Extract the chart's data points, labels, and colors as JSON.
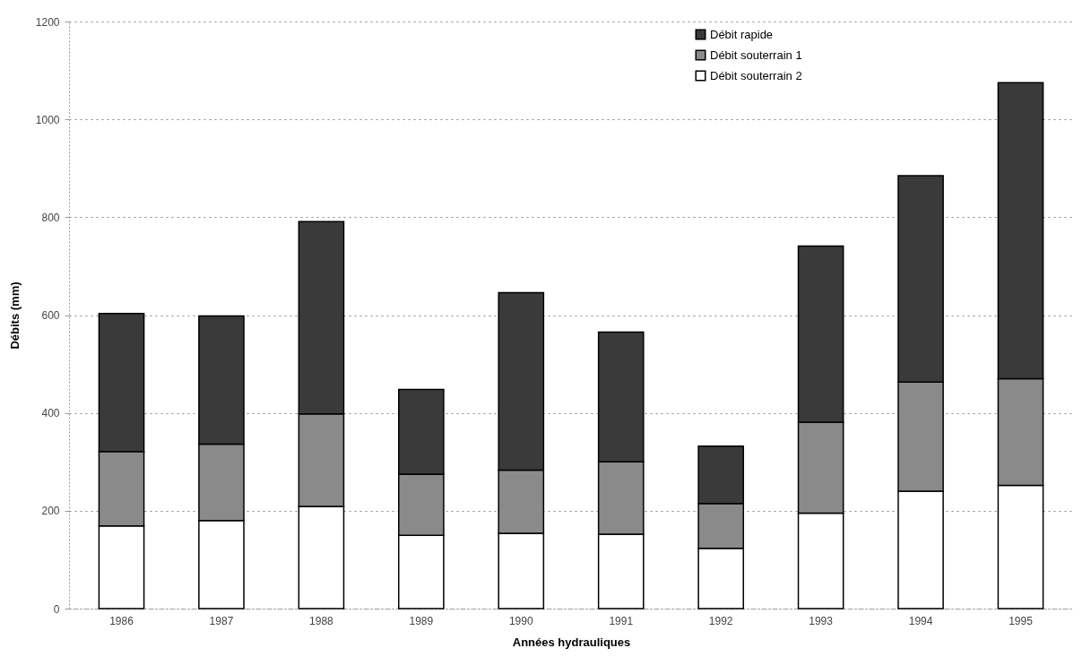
{
  "chart_data": {
    "type": "bar",
    "stacked": true,
    "xlabel": "Années hydrauliques",
    "ylabel": "Débits (mm)",
    "categories": [
      "1986",
      "1987",
      "1988",
      "1989",
      "1990",
      "1991",
      "1992",
      "1993",
      "1994",
      "1995"
    ],
    "series": [
      {
        "name": "Débit souterrain 2",
        "color": "#ffffff",
        "values": [
          169,
          180,
          209,
          150,
          154,
          152,
          123,
          195,
          240,
          252
        ]
      },
      {
        "name": "Débit souterrain 1",
        "color": "#8a8a8a",
        "values": [
          152,
          156,
          189,
          125,
          129,
          148,
          92,
          186,
          223,
          218
        ]
      },
      {
        "name": "Débit rapide",
        "color": "#3a3a3a",
        "values": [
          282,
          262,
          393,
          173,
          363,
          265,
          117,
          360,
          422,
          605
        ]
      }
    ],
    "ylim": [
      0,
      1200
    ],
    "yticks": [
      0,
      200,
      400,
      600,
      800,
      1000,
      1200
    ],
    "grid": "y",
    "legend": "top right"
  }
}
